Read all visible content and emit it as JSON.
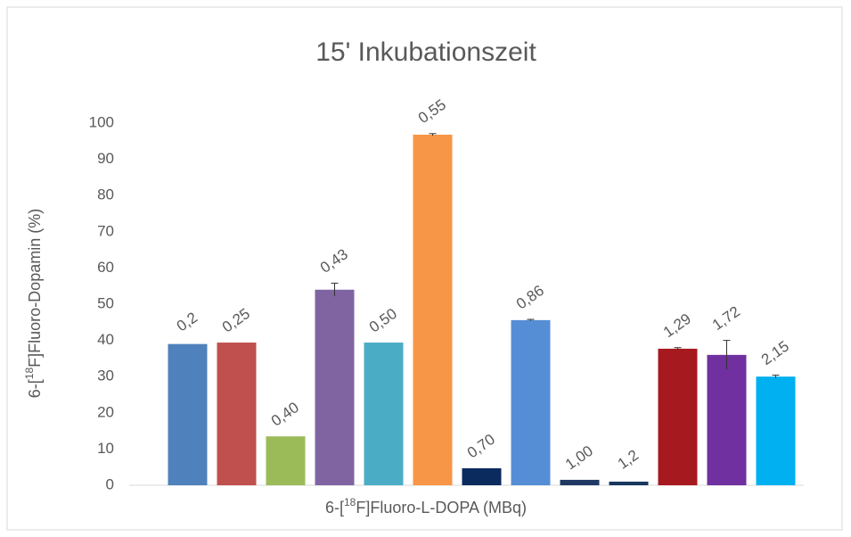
{
  "chart_data": {
    "type": "bar",
    "title": "15' Inkubationszeit",
    "y_label": [
      "6-[",
      "18",
      "F]Fluoro-Dopamin (%)"
    ],
    "x_label": [
      "6-[",
      "18",
      "F]Fluoro-L-DOPA (MBq)"
    ],
    "categories": [
      "0,2",
      "0,25",
      "0,40",
      "0,43",
      "0,50",
      "0,55",
      "0,70",
      "0,86",
      "1,00",
      "1,2",
      "1,29",
      "1,72",
      "2,15"
    ],
    "values": [
      39,
      39.4,
      13.5,
      54,
      39.4,
      96.8,
      4.7,
      45.6,
      1.5,
      1,
      37.7,
      36,
      30
    ],
    "errors": [
      null,
      null,
      null,
      1.8,
      null,
      0.3,
      null,
      0.2,
      null,
      null,
      0.3,
      4,
      0.4
    ],
    "colors": [
      "#4f81bd",
      "#c0504d",
      "#9bbb59",
      "#8064a2",
      "#4bacc6",
      "#f79646",
      "#0b2a5e",
      "#558ed5",
      "#1f3864",
      "#17375e",
      "#a5191f",
      "#7030a0",
      "#00b0f0"
    ],
    "ylim": [
      0,
      100
    ],
    "yticks": [
      0,
      10,
      20,
      30,
      40,
      50,
      60,
      70,
      80,
      90,
      100
    ],
    "grid": false
  }
}
